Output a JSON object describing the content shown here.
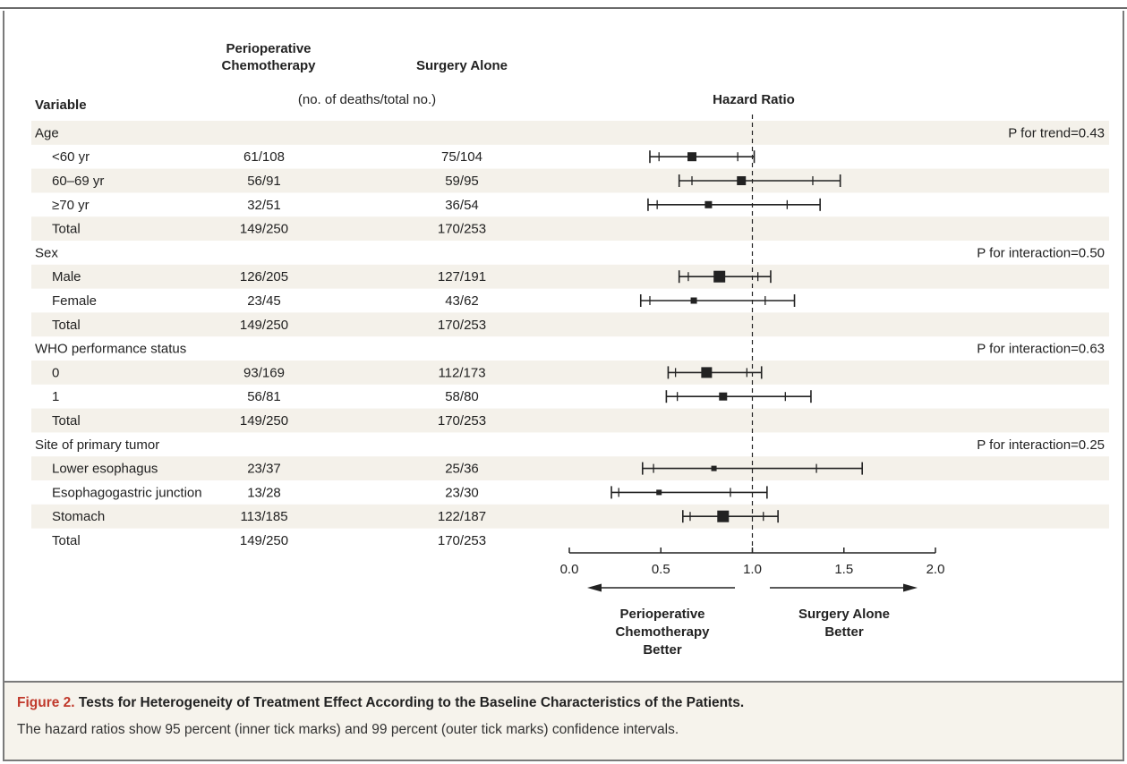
{
  "chart_data": {
    "type": "forest",
    "headers": {
      "variable": "Variable",
      "group1_line1": "Perioperative",
      "group1_line2": "Chemotherapy",
      "group2": "Surgery Alone",
      "subheader": "(no. of deaths/total no.)",
      "plot": "Hazard Ratio"
    },
    "x_axis": {
      "min": 0.0,
      "max": 2.0,
      "ticks": [
        "0.0",
        "0.5",
        "1.0",
        "1.5",
        "2.0"
      ],
      "reference_line": 1.0
    },
    "direction_labels": {
      "left": [
        "Perioperative",
        "Chemotherapy",
        "Better"
      ],
      "right": [
        "Surgery Alone",
        "Better"
      ]
    },
    "rows": [
      {
        "kind": "group",
        "label": "Age",
        "p": "P for trend=0.43"
      },
      {
        "kind": "item",
        "label": "<60 yr",
        "g1": "61/108",
        "g2": "75/104",
        "hr": 0.67,
        "ci95": [
          0.49,
          0.92
        ],
        "ci99": [
          0.44,
          1.01
        ],
        "size": 10
      },
      {
        "kind": "item",
        "label": "60–69 yr",
        "g1": "56/91",
        "g2": "59/95",
        "hr": 0.94,
        "ci95": [
          0.67,
          1.33
        ],
        "ci99": [
          0.6,
          1.48
        ],
        "size": 10
      },
      {
        "kind": "item",
        "label": "≥70 yr",
        "g1": "32/51",
        "g2": "36/54",
        "hr": 0.76,
        "ci95": [
          0.48,
          1.19
        ],
        "ci99": [
          0.43,
          1.37
        ],
        "size": 8
      },
      {
        "kind": "total",
        "label": "Total",
        "g1": "149/250",
        "g2": "170/253"
      },
      {
        "kind": "group",
        "label": "Sex",
        "p": "P for interaction=0.50"
      },
      {
        "kind": "item",
        "label": "Male",
        "g1": "126/205",
        "g2": "127/191",
        "hr": 0.82,
        "ci95": [
          0.65,
          1.03
        ],
        "ci99": [
          0.6,
          1.1
        ],
        "size": 13
      },
      {
        "kind": "item",
        "label": "Female",
        "g1": "23/45",
        "g2": "43/62",
        "hr": 0.68,
        "ci95": [
          0.44,
          1.07
        ],
        "ci99": [
          0.39,
          1.23
        ],
        "size": 7
      },
      {
        "kind": "total",
        "label": "Total",
        "g1": "149/250",
        "g2": "170/253"
      },
      {
        "kind": "group",
        "label": "WHO performance status",
        "p": "P for interaction=0.63"
      },
      {
        "kind": "item",
        "label": "0",
        "g1": "93/169",
        "g2": "112/173",
        "hr": 0.75,
        "ci95": [
          0.58,
          0.97
        ],
        "ci99": [
          0.54,
          1.05
        ],
        "size": 12
      },
      {
        "kind": "item",
        "label": "1",
        "g1": "56/81",
        "g2": "58/80",
        "hr": 0.84,
        "ci95": [
          0.59,
          1.18
        ],
        "ci99": [
          0.53,
          1.32
        ],
        "size": 9
      },
      {
        "kind": "total",
        "label": "Total",
        "g1": "149/250",
        "g2": "170/253"
      },
      {
        "kind": "group",
        "label": "Site of primary tumor",
        "p": "P for interaction=0.25"
      },
      {
        "kind": "item",
        "label": "Lower esophagus",
        "g1": "23/37",
        "g2": "25/36",
        "hr": 0.79,
        "ci95": [
          0.46,
          1.35
        ],
        "ci99": [
          0.4,
          1.6
        ],
        "size": 6
      },
      {
        "kind": "item",
        "label": "Esophagogastric junction",
        "g1": "13/28",
        "g2": "23/30",
        "hr": 0.49,
        "ci95": [
          0.27,
          0.88
        ],
        "ci99": [
          0.23,
          1.08
        ],
        "size": 6
      },
      {
        "kind": "item",
        "label": "Stomach",
        "g1": "113/185",
        "g2": "122/187",
        "hr": 0.84,
        "ci95": [
          0.66,
          1.06
        ],
        "ci99": [
          0.62,
          1.14
        ],
        "size": 13
      },
      {
        "kind": "total",
        "label": "Total",
        "g1": "149/250",
        "g2": "170/253"
      }
    ]
  },
  "caption": {
    "label": "Figure 2.",
    "title": "Tests for Heterogeneity of Treatment Effect According to the Baseline Characteristics of the Patients.",
    "text": "The hazard ratios show 95 percent (inner tick marks) and 99 percent (outer tick marks) confidence intervals."
  },
  "colors": {
    "band": "#f4f1ea",
    "caption_label": "#c0392b",
    "ink": "#222222"
  }
}
